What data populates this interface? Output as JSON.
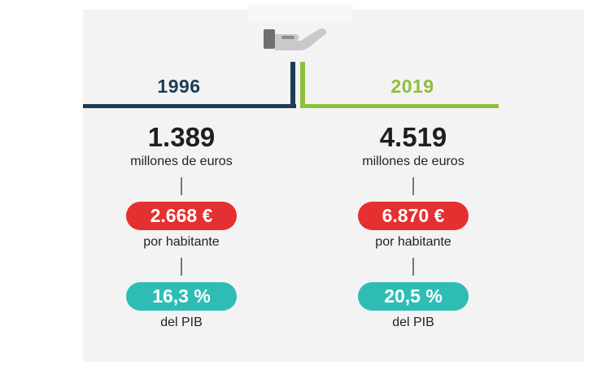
{
  "colors": {
    "year1996": "#1f3c55",
    "year2019": "#8fbe3b",
    "red_pill": "#e53031",
    "teal_pill": "#2ebdb5"
  },
  "icon": "hand-giving-money-icon",
  "left": {
    "year": "1996",
    "amount": "1.389",
    "amount_label": "millones de euros",
    "per_capita": "2.668 €",
    "per_capita_label": "por habitante",
    "gdp_share": "16,3 %",
    "gdp_label": "del PIB"
  },
  "right": {
    "year": "2019",
    "amount": "4.519",
    "amount_label": "millones de euros",
    "per_capita": "6.870 €",
    "per_capita_label": "por habitante",
    "gdp_share": "20,5 %",
    "gdp_label": "del PIB"
  }
}
